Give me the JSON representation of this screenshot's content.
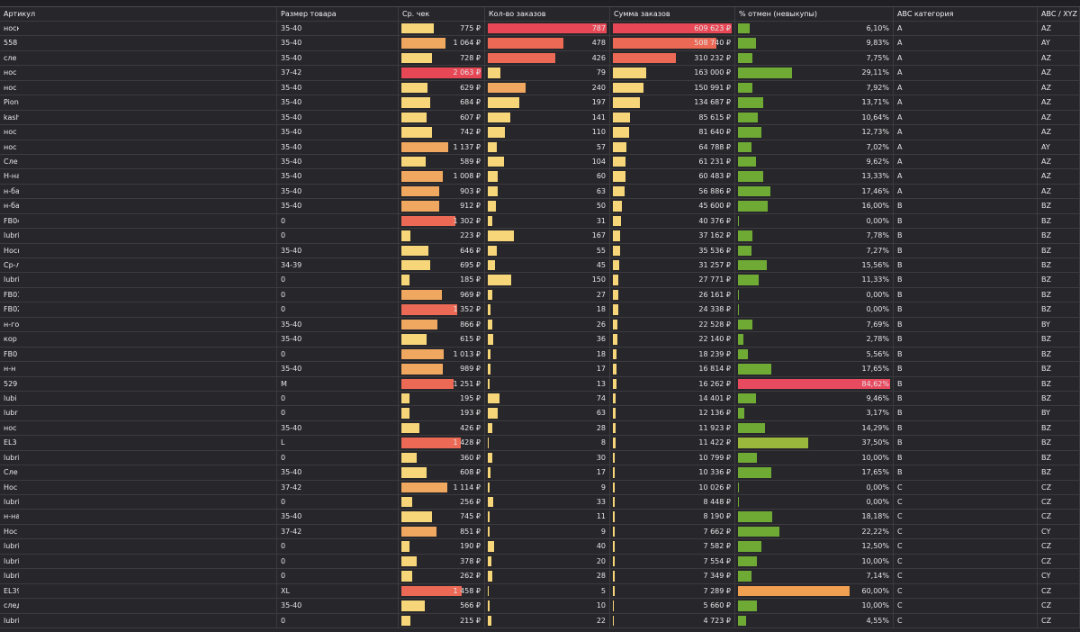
{
  "headers": {
    "article": "Артикул",
    "size": "Размер товара",
    "avg_check": "Ср. чек",
    "orders_count": "Кол-во заказов",
    "orders_sum": "Сумма заказов",
    "cancel_pct": "% отмен (невыкупы)",
    "abc": "ABC категория",
    "abcxyz": "ABC / XYZ"
  },
  "colors": {
    "low": "#f7d67a",
    "mid": "#f0a860",
    "high": "#ec6a55",
    "max": "#e84855",
    "green": "#6faa35",
    "green_mid": "#9ab83c",
    "orange": "#f0a050",
    "red": "#e84a60"
  },
  "max": {
    "avg_check": 2063,
    "orders_count": 787,
    "orders_sum": 609623,
    "cancel_pct": 84.62
  },
  "rows": [
    {
      "article": "носки",
      "size": "35-40",
      "avg_check": 775,
      "avg_check_text": "775 ₽",
      "orders": 787,
      "sum": 609623,
      "sum_text": "609 623 ₽",
      "cancel": 6.1,
      "cancel_text": "6,10%",
      "abc": "A",
      "abcxyz": "AZ"
    },
    {
      "article": "558",
      "size": "35-40",
      "avg_check": 1064,
      "avg_check_text": "1 064 ₽",
      "orders": 478,
      "sum": 508740,
      "sum_text": "508 740 ₽",
      "cancel": 9.83,
      "cancel_text": "9,83%",
      "abc": "A",
      "abcxyz": "AY"
    },
    {
      "article": "сле",
      "size": "35-40",
      "avg_check": 728,
      "avg_check_text": "728 ₽",
      "orders": 426,
      "sum": 310232,
      "sum_text": "310 232 ₽",
      "cancel": 7.75,
      "cancel_text": "7,75%",
      "abc": "A",
      "abcxyz": "AZ"
    },
    {
      "article": "нос",
      "size": "37-42",
      "avg_check": 2063,
      "avg_check_text": "2 063 ₽",
      "orders": 79,
      "sum": 163000,
      "sum_text": "163 000 ₽",
      "cancel": 29.11,
      "cancel_text": "29,11%",
      "abc": "A",
      "abcxyz": "AZ"
    },
    {
      "article": "нос",
      "size": "35-40",
      "avg_check": 629,
      "avg_check_text": "629 ₽",
      "orders": 240,
      "sum": 150991,
      "sum_text": "150 991 ₽",
      "cancel": 7.92,
      "cancel_text": "7,92%",
      "abc": "A",
      "abcxyz": "AZ"
    },
    {
      "article": "Pioni",
      "size": "35-40",
      "avg_check": 684,
      "avg_check_text": "684 ₽",
      "orders": 197,
      "sum": 134687,
      "sum_text": "134 687 ₽",
      "cancel": 13.71,
      "cancel_text": "13,71%",
      "abc": "A",
      "abcxyz": "AZ"
    },
    {
      "article": "kash",
      "size": "35-40",
      "avg_check": 607,
      "avg_check_text": "607 ₽",
      "orders": 141,
      "sum": 85615,
      "sum_text": "85 615 ₽",
      "cancel": 10.64,
      "cancel_text": "10,64%",
      "abc": "A",
      "abcxyz": "AZ"
    },
    {
      "article": "нос",
      "size": "35-40",
      "avg_check": 742,
      "avg_check_text": "742 ₽",
      "orders": 110,
      "sum": 81640,
      "sum_text": "81 640 ₽",
      "cancel": 12.73,
      "cancel_text": "12,73%",
      "abc": "A",
      "abcxyz": "AZ"
    },
    {
      "article": "нос",
      "size": "35-40",
      "avg_check": 1137,
      "avg_check_text": "1 137 ₽",
      "orders": 57,
      "sum": 64788,
      "sum_text": "64 788 ₽",
      "cancel": 7.02,
      "cancel_text": "7,02%",
      "abc": "A",
      "abcxyz": "AY"
    },
    {
      "article": "Сле",
      "size": "35-40",
      "avg_check": 589,
      "avg_check_text": "589 ₽",
      "orders": 104,
      "sum": 61231,
      "sum_text": "61 231 ₽",
      "cancel": 9.62,
      "cancel_text": "9,62%",
      "abc": "A",
      "abcxyz": "AZ"
    },
    {
      "article": "Н-на",
      "size": "35-40",
      "avg_check": 1008,
      "avg_check_text": "1 008 ₽",
      "orders": 60,
      "sum": 60483,
      "sum_text": "60 483 ₽",
      "cancel": 13.33,
      "cancel_text": "13,33%",
      "abc": "A",
      "abcxyz": "AZ"
    },
    {
      "article": "н-ба",
      "size": "35-40",
      "avg_check": 903,
      "avg_check_text": "903 ₽",
      "orders": 63,
      "sum": 56886,
      "sum_text": "56 886 ₽",
      "cancel": 17.46,
      "cancel_text": "17,46%",
      "abc": "A",
      "abcxyz": "AZ"
    },
    {
      "article": "н-ба",
      "size": "35-40",
      "avg_check": 912,
      "avg_check_text": "912 ₽",
      "orders": 50,
      "sum": 45600,
      "sum_text": "45 600 ₽",
      "cancel": 16.0,
      "cancel_text": "16,00%",
      "abc": "B",
      "abcxyz": "BZ"
    },
    {
      "article": "FB04",
      "size": "0",
      "avg_check": 1302,
      "avg_check_text": "1 302 ₽",
      "orders": 31,
      "sum": 40376,
      "sum_text": "40 376 ₽",
      "cancel": 0,
      "cancel_text": "0,00%",
      "abc": "B",
      "abcxyz": "BZ"
    },
    {
      "article": "lubri",
      "size": "0",
      "avg_check": 223,
      "avg_check_text": "223 ₽",
      "orders": 167,
      "sum": 37162,
      "sum_text": "37 162 ₽",
      "cancel": 7.78,
      "cancel_text": "7,78%",
      "abc": "B",
      "abcxyz": "BZ"
    },
    {
      "article": "Носк",
      "size": "35-40",
      "avg_check": 646,
      "avg_check_text": "646 ₽",
      "orders": 55,
      "sum": 35536,
      "sum_text": "35 536 ₽",
      "cancel": 7.27,
      "cancel_text": "7,27%",
      "abc": "B",
      "abcxyz": "BZ"
    },
    {
      "article": "Ср-л",
      "size": "34-39",
      "avg_check": 695,
      "avg_check_text": "695 ₽",
      "orders": 45,
      "sum": 31257,
      "sum_text": "31 257 ₽",
      "cancel": 15.56,
      "cancel_text": "15,56%",
      "abc": "B",
      "abcxyz": "BZ"
    },
    {
      "article": "lubri",
      "size": "0",
      "avg_check": 185,
      "avg_check_text": "185 ₽",
      "orders": 150,
      "sum": 27771,
      "sum_text": "27 771 ₽",
      "cancel": 11.33,
      "cancel_text": "11,33%",
      "abc": "B",
      "abcxyz": "BZ"
    },
    {
      "article": "FB01",
      "size": "0",
      "avg_check": 969,
      "avg_check_text": "969 ₽",
      "orders": 27,
      "sum": 26161,
      "sum_text": "26 161 ₽",
      "cancel": 0,
      "cancel_text": "0,00%",
      "abc": "B",
      "abcxyz": "BZ"
    },
    {
      "article": "FB02",
      "size": "0",
      "avg_check": 1352,
      "avg_check_text": "1 352 ₽",
      "orders": 18,
      "sum": 24338,
      "sum_text": "24 338 ₽",
      "cancel": 0,
      "cancel_text": "0,00%",
      "abc": "B",
      "abcxyz": "BZ"
    },
    {
      "article": "н-го",
      "size": "35-40",
      "avg_check": 866,
      "avg_check_text": "866 ₽",
      "orders": 26,
      "sum": 22528,
      "sum_text": "22 528 ₽",
      "cancel": 7.69,
      "cancel_text": "7,69%",
      "abc": "B",
      "abcxyz": "BY"
    },
    {
      "article": "кор",
      "size": "35-40",
      "avg_check": 615,
      "avg_check_text": "615 ₽",
      "orders": 36,
      "sum": 22140,
      "sum_text": "22 140 ₽",
      "cancel": 2.78,
      "cancel_text": "2,78%",
      "abc": "B",
      "abcxyz": "BZ"
    },
    {
      "article": "FB0",
      "size": "0",
      "avg_check": 1013,
      "avg_check_text": "1 013 ₽",
      "orders": 18,
      "sum": 18239,
      "sum_text": "18 239 ₽",
      "cancel": 5.56,
      "cancel_text": "5,56%",
      "abc": "B",
      "abcxyz": "BZ"
    },
    {
      "article": "н-н",
      "size": "35-40",
      "avg_check": 989,
      "avg_check_text": "989 ₽",
      "orders": 17,
      "sum": 16814,
      "sum_text": "16 814 ₽",
      "cancel": 17.65,
      "cancel_text": "17,65%",
      "abc": "B",
      "abcxyz": "BZ"
    },
    {
      "article": "529",
      "size": "M",
      "avg_check": 1251,
      "avg_check_text": "1 251 ₽",
      "orders": 13,
      "sum": 16262,
      "sum_text": "16 262 ₽",
      "cancel": 84.62,
      "cancel_text": "84,62%",
      "abc": "B",
      "abcxyz": "BZ"
    },
    {
      "article": "lubi",
      "size": "0",
      "avg_check": 195,
      "avg_check_text": "195 ₽",
      "orders": 74,
      "sum": 14401,
      "sum_text": "14 401 ₽",
      "cancel": 9.46,
      "cancel_text": "9,46%",
      "abc": "B",
      "abcxyz": "BZ"
    },
    {
      "article": "lubr",
      "size": "0",
      "avg_check": 193,
      "avg_check_text": "193 ₽",
      "orders": 63,
      "sum": 12136,
      "sum_text": "12 136 ₽",
      "cancel": 3.17,
      "cancel_text": "3,17%",
      "abc": "B",
      "abcxyz": "BY"
    },
    {
      "article": "нос",
      "size": "35-40",
      "avg_check": 426,
      "avg_check_text": "426 ₽",
      "orders": 28,
      "sum": 11923,
      "sum_text": "11 923 ₽",
      "cancel": 14.29,
      "cancel_text": "14,29%",
      "abc": "B",
      "abcxyz": "BZ"
    },
    {
      "article": "EL3",
      "size": "L",
      "avg_check": 1428,
      "avg_check_text": "1 428 ₽",
      "orders": 8,
      "sum": 11422,
      "sum_text": "11 422 ₽",
      "cancel": 37.5,
      "cancel_text": "37,50%",
      "abc": "B",
      "abcxyz": "BZ"
    },
    {
      "article": "lubri",
      "size": "0",
      "avg_check": 360,
      "avg_check_text": "360 ₽",
      "orders": 30,
      "sum": 10799,
      "sum_text": "10 799 ₽",
      "cancel": 10.0,
      "cancel_text": "10,00%",
      "abc": "B",
      "abcxyz": "BZ"
    },
    {
      "article": "Сле",
      "size": "35-40",
      "avg_check": 608,
      "avg_check_text": "608 ₽",
      "orders": 17,
      "sum": 10336,
      "sum_text": "10 336 ₽",
      "cancel": 17.65,
      "cancel_text": "17,65%",
      "abc": "B",
      "abcxyz": "BZ"
    },
    {
      "article": "Нос",
      "size": "37-42",
      "avg_check": 1114,
      "avg_check_text": "1 114 ₽",
      "orders": 9,
      "sum": 10026,
      "sum_text": "10 026 ₽",
      "cancel": 0,
      "cancel_text": "0,00%",
      "abc": "C",
      "abcxyz": "CZ"
    },
    {
      "article": "lubri",
      "size": "0",
      "avg_check": 256,
      "avg_check_text": "256 ₽",
      "orders": 33,
      "sum": 8448,
      "sum_text": "8 448 ₽",
      "cancel": 0,
      "cancel_text": "0,00%",
      "abc": "C",
      "abcxyz": "CZ"
    },
    {
      "article": "н-на",
      "size": "35-40",
      "avg_check": 745,
      "avg_check_text": "745 ₽",
      "orders": 11,
      "sum": 8190,
      "sum_text": "8 190 ₽",
      "cancel": 18.18,
      "cancel_text": "18,18%",
      "abc": "C",
      "abcxyz": "CZ"
    },
    {
      "article": "Нос",
      "size": "37-42",
      "avg_check": 851,
      "avg_check_text": "851 ₽",
      "orders": 9,
      "sum": 7662,
      "sum_text": "7 662 ₽",
      "cancel": 22.22,
      "cancel_text": "22,22%",
      "abc": "C",
      "abcxyz": "CY"
    },
    {
      "article": "lubri",
      "size": "0",
      "avg_check": 190,
      "avg_check_text": "190 ₽",
      "orders": 40,
      "sum": 7582,
      "sum_text": "7 582 ₽",
      "cancel": 12.5,
      "cancel_text": "12,50%",
      "abc": "C",
      "abcxyz": "CZ"
    },
    {
      "article": "lubri",
      "size": "0",
      "avg_check": 378,
      "avg_check_text": "378 ₽",
      "orders": 20,
      "sum": 7554,
      "sum_text": "7 554 ₽",
      "cancel": 10.0,
      "cancel_text": "10,00%",
      "abc": "C",
      "abcxyz": "CZ"
    },
    {
      "article": "lubri",
      "size": "0",
      "avg_check": 262,
      "avg_check_text": "262 ₽",
      "orders": 28,
      "sum": 7349,
      "sum_text": "7 349 ₽",
      "cancel": 7.14,
      "cancel_text": "7,14%",
      "abc": "C",
      "abcxyz": "CY"
    },
    {
      "article": "EL39",
      "size": "XL",
      "avg_check": 1458,
      "avg_check_text": "1 458 ₽",
      "orders": 5,
      "sum": 7289,
      "sum_text": "7 289 ₽",
      "cancel": 60.0,
      "cancel_text": "60,00%",
      "abc": "C",
      "abcxyz": "CZ"
    },
    {
      "article": "след",
      "size": "35-40",
      "avg_check": 566,
      "avg_check_text": "566 ₽",
      "orders": 10,
      "sum": 5660,
      "sum_text": "5 660 ₽",
      "cancel": 10.0,
      "cancel_text": "10,00%",
      "abc": "C",
      "abcxyz": "CZ"
    },
    {
      "article": "lubri",
      "size": "0",
      "avg_check": 215,
      "avg_check_text": "215 ₽",
      "orders": 22,
      "sum": 4723,
      "sum_text": "4 723 ₽",
      "cancel": 4.55,
      "cancel_text": "4,55%",
      "abc": "C",
      "abcxyz": "CZ"
    }
  ]
}
